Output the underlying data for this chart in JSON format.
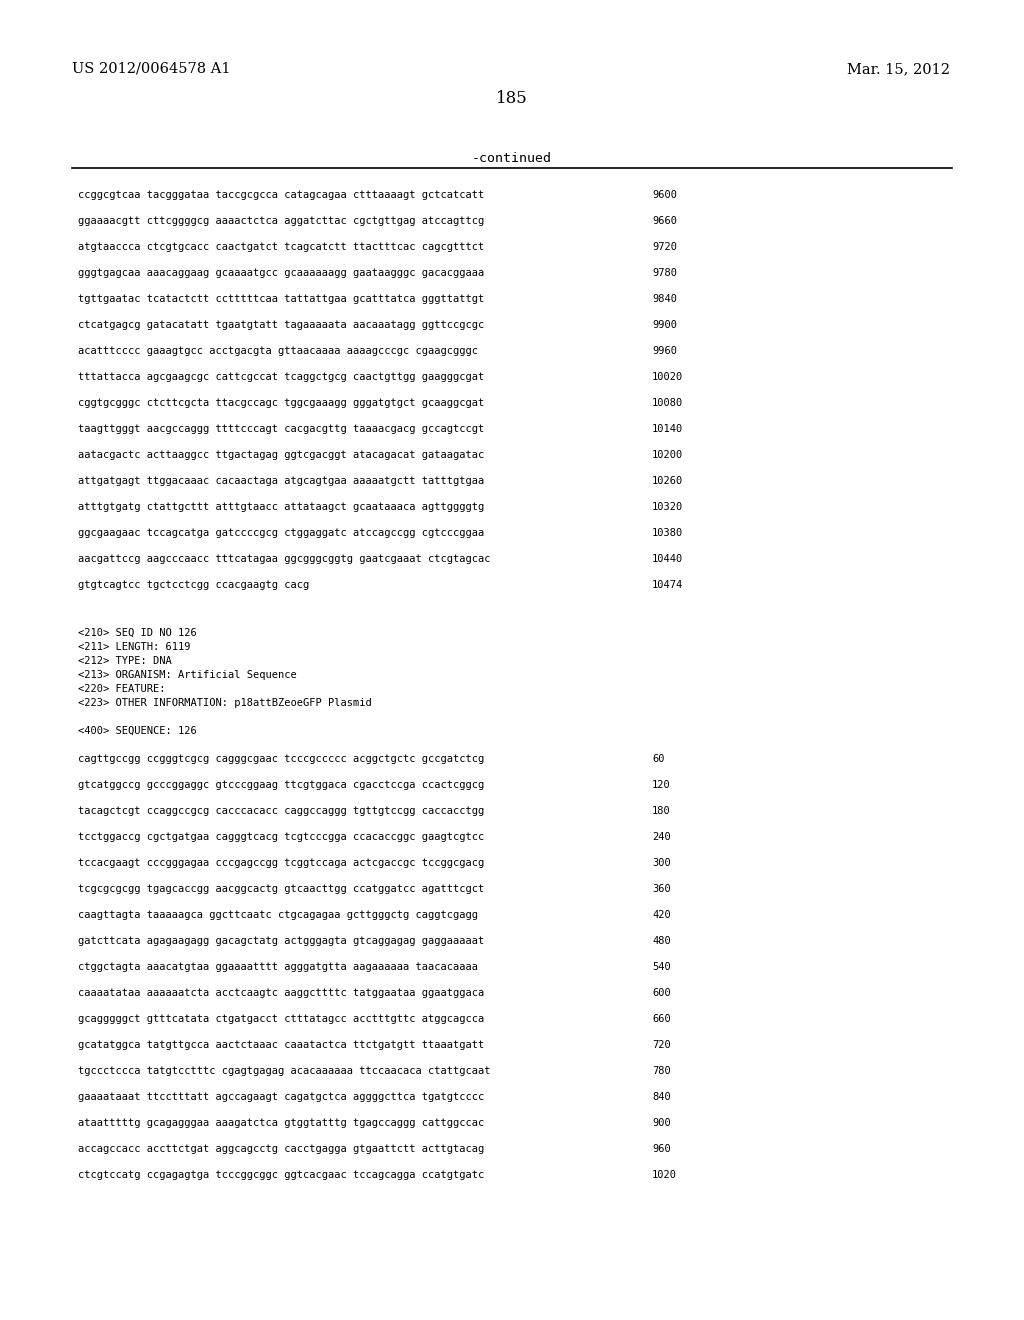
{
  "header_left": "US 2012/0064578 A1",
  "header_right": "Mar. 15, 2012",
  "page_number": "185",
  "continued_label": "-continued",
  "background_color": "#ffffff",
  "text_color": "#000000",
  "font_size_header": 10.5,
  "font_size_page": 12,
  "font_size_continued": 9.5,
  "font_size_body": 7.5,
  "sequence_lines_top": [
    [
      "ccggcgtcaa tacgggataa taccgcgcca catagcagaa ctttaaaagt gctcatcatt",
      "9600"
    ],
    [
      "ggaaaacgtt cttcggggcg aaaactctca aggatcttac cgctgttgag atccagttcg",
      "9660"
    ],
    [
      "atgtaaccca ctcgtgcacc caactgatct tcagcatctt ttactttcac cagcgtttct",
      "9720"
    ],
    [
      "gggtgagcaa aaacaggaag gcaaaatgcc gcaaaaaagg gaataagggc gacacggaaa",
      "9780"
    ],
    [
      "tgttgaatac tcatactctt cctttttcaa tattattgaa gcatttatca gggttattgt",
      "9840"
    ],
    [
      "ctcatgagcg gatacatatt tgaatgtatt tagaaaaata aacaaatagg ggttccgcgc",
      "9900"
    ],
    [
      "acatttcccc gaaagtgcc acctgacgta gttaacaaaa aaaagcccgc cgaagcgggc",
      "9960"
    ],
    [
      "tttattacca agcgaagcgc cattcgccat tcaggctgcg caactgttgg gaagggcgat",
      "10020"
    ],
    [
      "cggtgcgggc ctcttcgcta ttacgccagc tggcgaaagg gggatgtgct gcaaggcgat",
      "10080"
    ],
    [
      "taagttgggt aacgccaggg ttttcccagt cacgacgttg taaaacgacg gccagtccgt",
      "10140"
    ],
    [
      "aatacgactc acttaaggcc ttgactagag ggtcgacggt atacagacat gataagatac",
      "10200"
    ],
    [
      "attgatgagt ttggacaaac cacaactaga atgcagtgaa aaaaatgctt tatttgtgaa",
      "10260"
    ],
    [
      "atttgtgatg ctattgcttt atttgtaacc attataagct gcaataaaca agttggggtg",
      "10320"
    ],
    [
      "ggcgaagaac tccagcatga gatccccgcg ctggaggatc atccagccgg cgtcccggaa",
      "10380"
    ],
    [
      "aacgattccg aagcccaacc tttcatagaa ggcgggcggtg gaatcgaaat ctcgtagcac",
      "10440"
    ],
    [
      "gtgtcagtcc tgctcctcgg ccacgaagtg cacg",
      "10474"
    ]
  ],
  "metadata_lines": [
    "<210> SEQ ID NO 126",
    "<211> LENGTH: 6119",
    "<212> TYPE: DNA",
    "<213> ORGANISM: Artificial Sequence",
    "<220> FEATURE:",
    "<223> OTHER INFORMATION: p18attBZeoeGFP Plasmid"
  ],
  "sequence_label": "<400> SEQUENCE: 126",
  "sequence_lines_bottom": [
    [
      "cagttgccgg ccgggtcgcg cagggcgaac tcccgccccc acggctgctc gccgatctcg",
      "60"
    ],
    [
      "gtcatggccg gcccggaggc gtcccggaag ttcgtggaca cgacctccga ccactcggcg",
      "120"
    ],
    [
      "tacagctcgt ccaggccgcg cacccacacc caggccaggg tgttgtccgg caccacctgg",
      "180"
    ],
    [
      "tcctggaccg cgctgatgaa cagggtcacg tcgtcccgga ccacaccggc gaagtcgtcc",
      "240"
    ],
    [
      "tccacgaagt cccgggagaa cccgagccgg tcggtccaga actcgaccgc tccggcgacg",
      "300"
    ],
    [
      "tcgcgcgcgg tgagcaccgg aacggcactg gtcaacttgg ccatggatcc agatttcgct",
      "360"
    ],
    [
      "caagttagta taaaaagca ggcttcaatc ctgcagagaa gcttgggctg caggtcgagg",
      "420"
    ],
    [
      "gatcttcata agagaagagg gacagctatg actgggagta gtcaggagag gaggaaaaat",
      "480"
    ],
    [
      "ctggctagta aaacatgtaa ggaaaatttt agggatgtta aagaaaaaa taacacaaaa",
      "540"
    ],
    [
      "caaaatataa aaaaaatcta acctcaagtc aaggcttttc tatggaataa ggaatggaca",
      "600"
    ],
    [
      "gcagggggct gtttcatata ctgatgacct ctttatagcc acctttgttc atggcagcca",
      "660"
    ],
    [
      "gcatatggca tatgttgcca aactctaaac caaatactca ttctgatgtt ttaaatgatt",
      "720"
    ],
    [
      "tgccctccca tatgtcctttc cgagtgagag acacaaaaaa ttccaacaca ctattgcaat",
      "780"
    ],
    [
      "gaaaataaat ttcctttatt agccagaagt cagatgctca aggggcttca tgatgtcccc",
      "840"
    ],
    [
      "ataatttttg gcagagggaa aaagatctca gtggtatttg tgagccaggg cattggccac",
      "900"
    ],
    [
      "accagccacc accttctgat aggcagcctg cacctgagga gtgaattctt acttgtacag",
      "960"
    ],
    [
      "ctcgtccatg ccgagagtga tcccggcggc ggtcacgaac tccagcagga ccatgtgatc",
      "1020"
    ]
  ]
}
